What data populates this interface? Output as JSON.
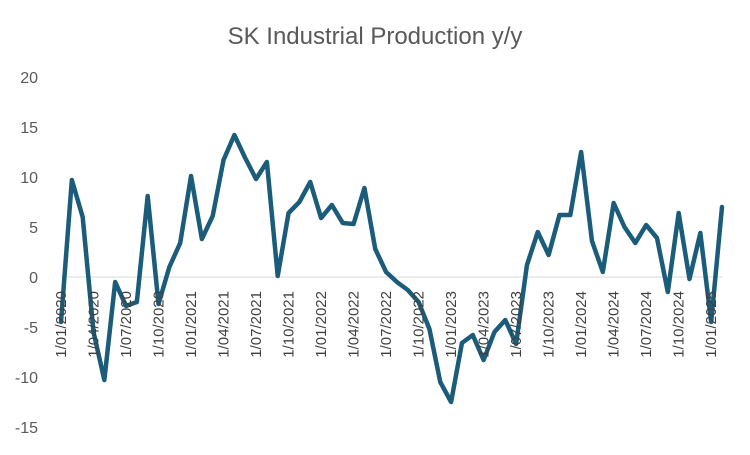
{
  "chart_data": {
    "type": "line",
    "title": "SK Industrial Production y/y",
    "xlabel": "",
    "ylabel": "",
    "ylim": [
      -15,
      20
    ],
    "yticks": [
      -15,
      -10,
      -5,
      0,
      5,
      10,
      15,
      20
    ],
    "grid": false,
    "legend": "none",
    "series_color": "#1b5c7a",
    "x_tick_labels": [
      "1/01/2020",
      "1/04/2020",
      "1/07/2020",
      "1/10/2020",
      "1/01/2021",
      "1/04/2021",
      "1/07/2021",
      "1/10/2021",
      "1/01/2022",
      "1/04/2022",
      "1/07/2022",
      "1/10/2022",
      "1/01/2023",
      "1/04/2023",
      "1/07/2023",
      "1/10/2023",
      "1/01/2024",
      "1/04/2024",
      "1/07/2024",
      "1/10/2024",
      "1/01/2025"
    ],
    "x_tick_every": 3,
    "series": [
      {
        "name": "SK Industrial Production y/y",
        "values": [
          -4.5,
          9.7,
          6.0,
          -5.5,
          -10.3,
          -0.5,
          -2.9,
          -2.5,
          8.1,
          -2.7,
          1.0,
          3.4,
          10.1,
          3.8,
          6.1,
          11.7,
          14.2,
          11.9,
          9.8,
          11.5,
          0.1,
          6.4,
          7.5,
          9.5,
          5.9,
          7.2,
          5.4,
          5.3,
          8.9,
          2.8,
          0.5,
          -0.5,
          -1.3,
          -2.5,
          -5.2,
          -10.5,
          -12.5,
          -6.6,
          -5.8,
          -8.3,
          -5.5,
          -4.3,
          -6.7,
          1.2,
          4.5,
          2.2,
          6.2,
          6.2,
          12.5,
          3.6,
          0.5,
          7.4,
          5.0,
          3.4,
          5.2,
          3.9,
          -1.5,
          6.4,
          -0.2,
          4.4,
          -4.5,
          7.0
        ]
      }
    ]
  }
}
